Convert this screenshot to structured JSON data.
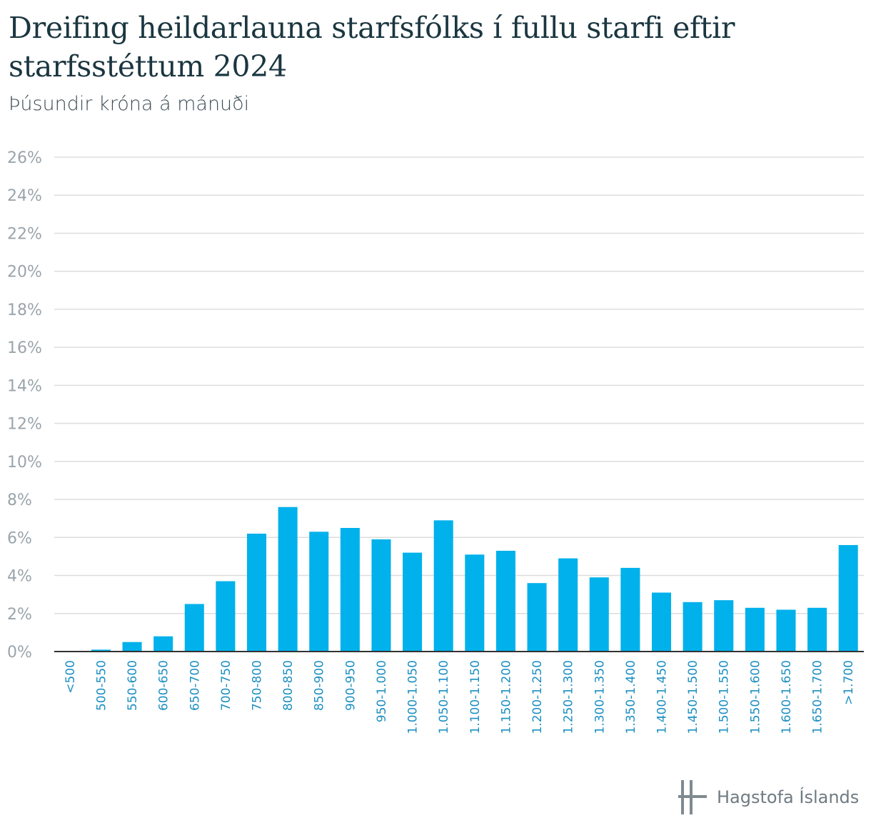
{
  "title": "Dreifing heildarlauna starfsfólks í fullu starfi eftir starfsstéttum 2024",
  "subtitle": "Þúsundir króna á mánuði",
  "brand": {
    "name": "Hagstofa Íslands",
    "logo_icon": "hagstofa-logo-icon"
  },
  "colors": {
    "bar": "#00b1eb",
    "grid": "#dddddd",
    "axis": "#333333",
    "xtick": "#1d8fc2",
    "ytick": "#9aa4aa"
  },
  "chart_data": {
    "type": "bar",
    "title": "Dreifing heildarlauna starfsfólks í fullu starfi eftir starfsstéttum 2024",
    "subtitle": "Þúsundir króna á mánuði",
    "categories": [
      "<500",
      "500-550",
      "550-600",
      "600-650",
      "650-700",
      "700-750",
      "750-800",
      "800-850",
      "850-900",
      "900-950",
      "950-1.000",
      "1.000-1.050",
      "1.050-1.100",
      "1.100-1.150",
      "1.150-1.200",
      "1.200-1.250",
      "1.250-1.300",
      "1.300-1.350",
      "1.350-1.400",
      "1.400-1.450",
      "1.450-1.500",
      "1.500-1.550",
      "1.550-1.600",
      "1.600-1.650",
      "1.650-1.700",
      ">1.700"
    ],
    "values": [
      0.0,
      0.1,
      0.5,
      0.8,
      2.5,
      3.7,
      6.2,
      7.6,
      6.3,
      6.5,
      5.9,
      5.2,
      6.9,
      5.1,
      5.3,
      3.6,
      4.9,
      3.9,
      4.4,
      3.1,
      2.6,
      2.7,
      2.3,
      2.2,
      2.3,
      5.6
    ],
    "yticks": [
      "0%",
      "2%",
      "4%",
      "6%",
      "8%",
      "10%",
      "12%",
      "14%",
      "16%",
      "18%",
      "20%",
      "22%",
      "24%",
      "26%"
    ],
    "ylim": [
      0,
      26
    ],
    "grid": true,
    "legend": "none"
  }
}
